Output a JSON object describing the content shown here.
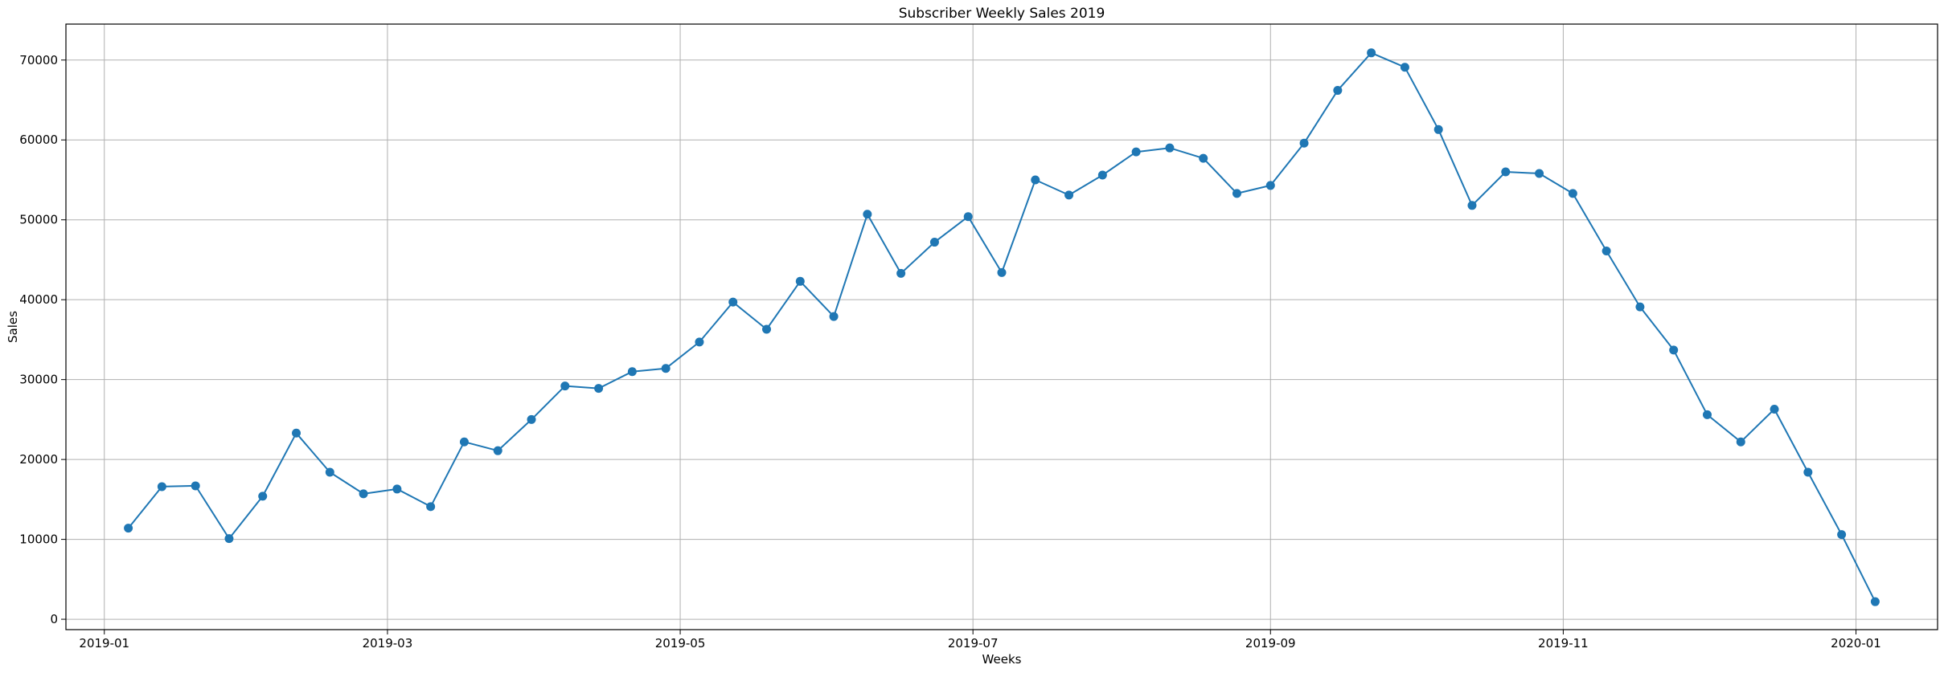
{
  "chart_data": {
    "type": "line",
    "title": "Subscriber Weekly Sales 2019",
    "xlabel": "Weeks",
    "ylabel": "Sales",
    "xlim": [
      "2018-12-24",
      "2020-01-18"
    ],
    "ylim": [
      -1300,
      74500
    ],
    "grid": true,
    "line_color": "#1f77b4",
    "marker": "circle",
    "x_ticks": [
      {
        "date": "2019-01-01",
        "label": "2019-01"
      },
      {
        "date": "2019-03-01",
        "label": "2019-03"
      },
      {
        "date": "2019-05-01",
        "label": "2019-05"
      },
      {
        "date": "2019-07-01",
        "label": "2019-07"
      },
      {
        "date": "2019-09-01",
        "label": "2019-09"
      },
      {
        "date": "2019-11-01",
        "label": "2019-11"
      },
      {
        "date": "2020-01-01",
        "label": "2020-01"
      }
    ],
    "y_ticks": [
      0,
      10000,
      20000,
      30000,
      40000,
      50000,
      60000,
      70000
    ],
    "series": [
      {
        "x": [
          "2019-01-06",
          "2019-01-13",
          "2019-01-20",
          "2019-01-27",
          "2019-02-03",
          "2019-02-10",
          "2019-02-17",
          "2019-02-24",
          "2019-03-03",
          "2019-03-10",
          "2019-03-17",
          "2019-03-24",
          "2019-03-31",
          "2019-04-07",
          "2019-04-14",
          "2019-04-21",
          "2019-04-28",
          "2019-05-05",
          "2019-05-12",
          "2019-05-19",
          "2019-05-26",
          "2019-06-02",
          "2019-06-09",
          "2019-06-16",
          "2019-06-23",
          "2019-06-30",
          "2019-07-07",
          "2019-07-14",
          "2019-07-21",
          "2019-07-28",
          "2019-08-04",
          "2019-08-11",
          "2019-08-18",
          "2019-08-25",
          "2019-09-01",
          "2019-09-08",
          "2019-09-15",
          "2019-09-22",
          "2019-09-29",
          "2019-10-06",
          "2019-10-13",
          "2019-10-20",
          "2019-10-27",
          "2019-11-03",
          "2019-11-10",
          "2019-11-17",
          "2019-11-24",
          "2019-12-01",
          "2019-12-08",
          "2019-12-15",
          "2019-12-22",
          "2019-12-29",
          "2020-01-05"
        ],
        "values": [
          11400,
          16600,
          16700,
          10100,
          15400,
          23300,
          18400,
          15700,
          16300,
          14100,
          22200,
          21100,
          25000,
          29200,
          28900,
          31000,
          31400,
          34700,
          39700,
          36300,
          42300,
          37900,
          50700,
          43300,
          47200,
          50400,
          43400,
          55000,
          53100,
          55600,
          58500,
          59000,
          57700,
          53300,
          54300,
          59600,
          66200,
          70900,
          69100,
          61300,
          51800,
          56000,
          55800,
          53300,
          46100,
          39100,
          33700,
          25600,
          22200,
          26300,
          18400,
          10600,
          2200
        ]
      }
    ]
  }
}
